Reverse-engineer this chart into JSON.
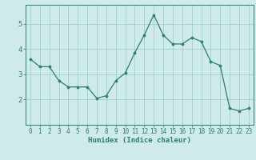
{
  "xlabel": "Humidex (Indice chaleur)",
  "x": [
    0,
    1,
    2,
    3,
    4,
    5,
    6,
    7,
    8,
    9,
    10,
    11,
    12,
    13,
    14,
    15,
    16,
    17,
    18,
    19,
    20,
    21,
    22,
    23
  ],
  "y": [
    3.6,
    3.3,
    3.3,
    2.75,
    2.5,
    2.5,
    2.5,
    2.05,
    2.15,
    2.75,
    3.05,
    3.85,
    4.55,
    5.35,
    4.55,
    4.2,
    4.2,
    4.45,
    4.3,
    3.5,
    3.35,
    1.65,
    1.55,
    1.65
  ],
  "line_color": "#2e7d6e",
  "marker_size": 2.2,
  "bg_color": "#ceeaea",
  "grid_color": "#9ecece",
  "axis_color": "#2e7d6e",
  "tick_color": "#2e7d6e",
  "label_color": "#2e7d6e",
  "ylim": [
    1.0,
    5.75
  ],
  "yticks": [
    2,
    3,
    4,
    5
  ],
  "xlim": [
    -0.5,
    23.5
  ],
  "figsize": [
    3.2,
    2.0
  ],
  "dpi": 100,
  "xlabel_fontsize": 6.5,
  "tick_fontsize": 5.5,
  "ytick_fontsize": 6.5
}
